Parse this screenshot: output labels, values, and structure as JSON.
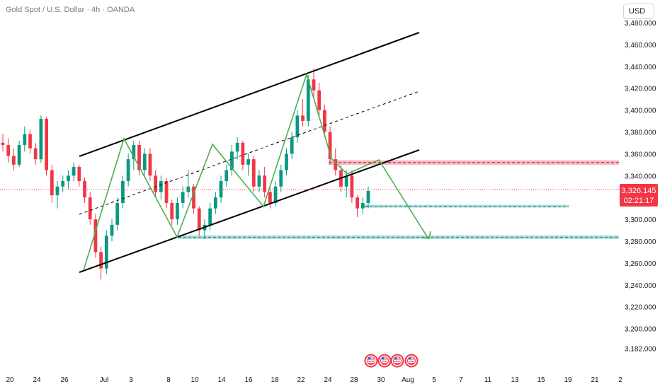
{
  "header": {
    "title": "Gold Spot / U.S. Dollar · 4h · OANDA",
    "currency": "USD"
  },
  "price_label": {
    "price": "3,326.145",
    "countdown": "02:21:17",
    "color": "#f23645"
  },
  "colors": {
    "up": "#089981",
    "down": "#f23645",
    "channel": "#000000",
    "pattern": "#4caf50",
    "resistance_zone": "#f7a7b2",
    "support_zone": "#a8dcd9"
  },
  "event_icons": [
    "us-flag-icon",
    "us-flag-icon",
    "us-flag-icon",
    "us-flag-icon"
  ],
  "chart_data": {
    "type": "candlestick",
    "symbol": "Gold Spot / U.S. Dollar",
    "interval": "4h",
    "source": "OANDA",
    "y_ticks": [
      3480,
      3460,
      3440,
      3420,
      3400,
      3380,
      3360,
      3340,
      3320,
      3300,
      3280,
      3260,
      3240,
      3220,
      3200,
      3182
    ],
    "y_tick_labels": [
      "3,480.000",
      "3,460.000",
      "3,440.000",
      "3,420.000",
      "3,400.000",
      "3,380.000",
      "3,360.000",
      "3,340.000",
      "3,320.000",
      "3,300.000",
      "3,280.000",
      "3,260.000",
      "3,240.000",
      "3,220.000",
      "3,200.000",
      "3,182.000"
    ],
    "x_tick_labels": [
      "20",
      "24",
      "26",
      "Jul",
      "3",
      "8",
      "10",
      "14",
      "16",
      "18",
      "22",
      "24",
      "28",
      "30",
      "Aug",
      "5",
      "7",
      "11",
      "13",
      "15",
      "19",
      "21",
      "2"
    ],
    "last_price": 3326.145,
    "resistance_zone": [
      3350,
      3354
    ],
    "support_levels": [
      3312,
      3284
    ],
    "candles": [
      [
        3370,
        3378,
        3362,
        3368
      ],
      [
        3368,
        3374,
        3352,
        3358
      ],
      [
        3358,
        3365,
        3345,
        3350
      ],
      [
        3350,
        3372,
        3348,
        3368
      ],
      [
        3368,
        3385,
        3362,
        3378
      ],
      [
        3378,
        3382,
        3360,
        3365
      ],
      [
        3365,
        3370,
        3350,
        3355
      ],
      [
        3355,
        3395,
        3352,
        3392
      ],
      [
        3392,
        3394,
        3340,
        3345
      ],
      [
        3345,
        3350,
        3315,
        3322
      ],
      [
        3322,
        3335,
        3310,
        3330
      ],
      [
        3330,
        3340,
        3325,
        3335
      ],
      [
        3335,
        3345,
        3328,
        3340
      ],
      [
        3340,
        3352,
        3335,
        3348
      ],
      [
        3348,
        3350,
        3330,
        3335
      ],
      [
        3335,
        3338,
        3315,
        3320
      ],
      [
        3320,
        3325,
        3295,
        3300
      ],
      [
        3300,
        3305,
        3265,
        3270
      ],
      [
        3270,
        3275,
        3245,
        3255
      ],
      [
        3255,
        3290,
        3250,
        3285
      ],
      [
        3285,
        3300,
        3280,
        3295
      ],
      [
        3295,
        3320,
        3290,
        3315
      ],
      [
        3315,
        3340,
        3310,
        3335
      ],
      [
        3335,
        3360,
        3330,
        3355
      ],
      [
        3355,
        3372,
        3345,
        3368
      ],
      [
        3368,
        3372,
        3340,
        3345
      ],
      [
        3345,
        3365,
        3340,
        3360
      ],
      [
        3360,
        3365,
        3335,
        3340
      ],
      [
        3340,
        3345,
        3320,
        3325
      ],
      [
        3325,
        3340,
        3318,
        3335
      ],
      [
        3335,
        3338,
        3310,
        3315
      ],
      [
        3315,
        3318,
        3295,
        3300
      ],
      [
        3300,
        3320,
        3295,
        3315
      ],
      [
        3315,
        3330,
        3310,
        3325
      ],
      [
        3325,
        3345,
        3320,
        3330
      ],
      [
        3330,
        3332,
        3305,
        3310
      ],
      [
        3310,
        3312,
        3285,
        3290
      ],
      [
        3290,
        3300,
        3282,
        3295
      ],
      [
        3295,
        3315,
        3290,
        3310
      ],
      [
        3310,
        3325,
        3305,
        3320
      ],
      [
        3320,
        3340,
        3315,
        3335
      ],
      [
        3335,
        3350,
        3330,
        3345
      ],
      [
        3345,
        3368,
        3340,
        3362
      ],
      [
        3362,
        3375,
        3355,
        3370
      ],
      [
        3370,
        3372,
        3345,
        3350
      ],
      [
        3350,
        3360,
        3340,
        3355
      ],
      [
        3355,
        3358,
        3325,
        3330
      ],
      [
        3330,
        3345,
        3325,
        3340
      ],
      [
        3340,
        3348,
        3320,
        3325
      ],
      [
        3325,
        3330,
        3310,
        3315
      ],
      [
        3315,
        3335,
        3312,
        3330
      ],
      [
        3330,
        3350,
        3325,
        3345
      ],
      [
        3345,
        3365,
        3340,
        3360
      ],
      [
        3360,
        3380,
        3355,
        3375
      ],
      [
        3375,
        3400,
        3370,
        3395
      ],
      [
        3395,
        3410,
        3385,
        3390
      ],
      [
        3390,
        3432,
        3385,
        3428
      ],
      [
        3428,
        3438,
        3410,
        3418
      ],
      [
        3418,
        3425,
        3395,
        3400
      ],
      [
        3400,
        3405,
        3375,
        3380
      ],
      [
        3380,
        3385,
        3350,
        3355
      ],
      [
        3355,
        3365,
        3340,
        3345
      ],
      [
        3345,
        3350,
        3325,
        3330
      ],
      [
        3330,
        3345,
        3320,
        3340
      ],
      [
        3340,
        3345,
        3315,
        3320
      ],
      [
        3320,
        3322,
        3302,
        3310
      ],
      [
        3310,
        3320,
        3305,
        3315
      ],
      [
        3315,
        3330,
        3310,
        3326
      ]
    ]
  }
}
